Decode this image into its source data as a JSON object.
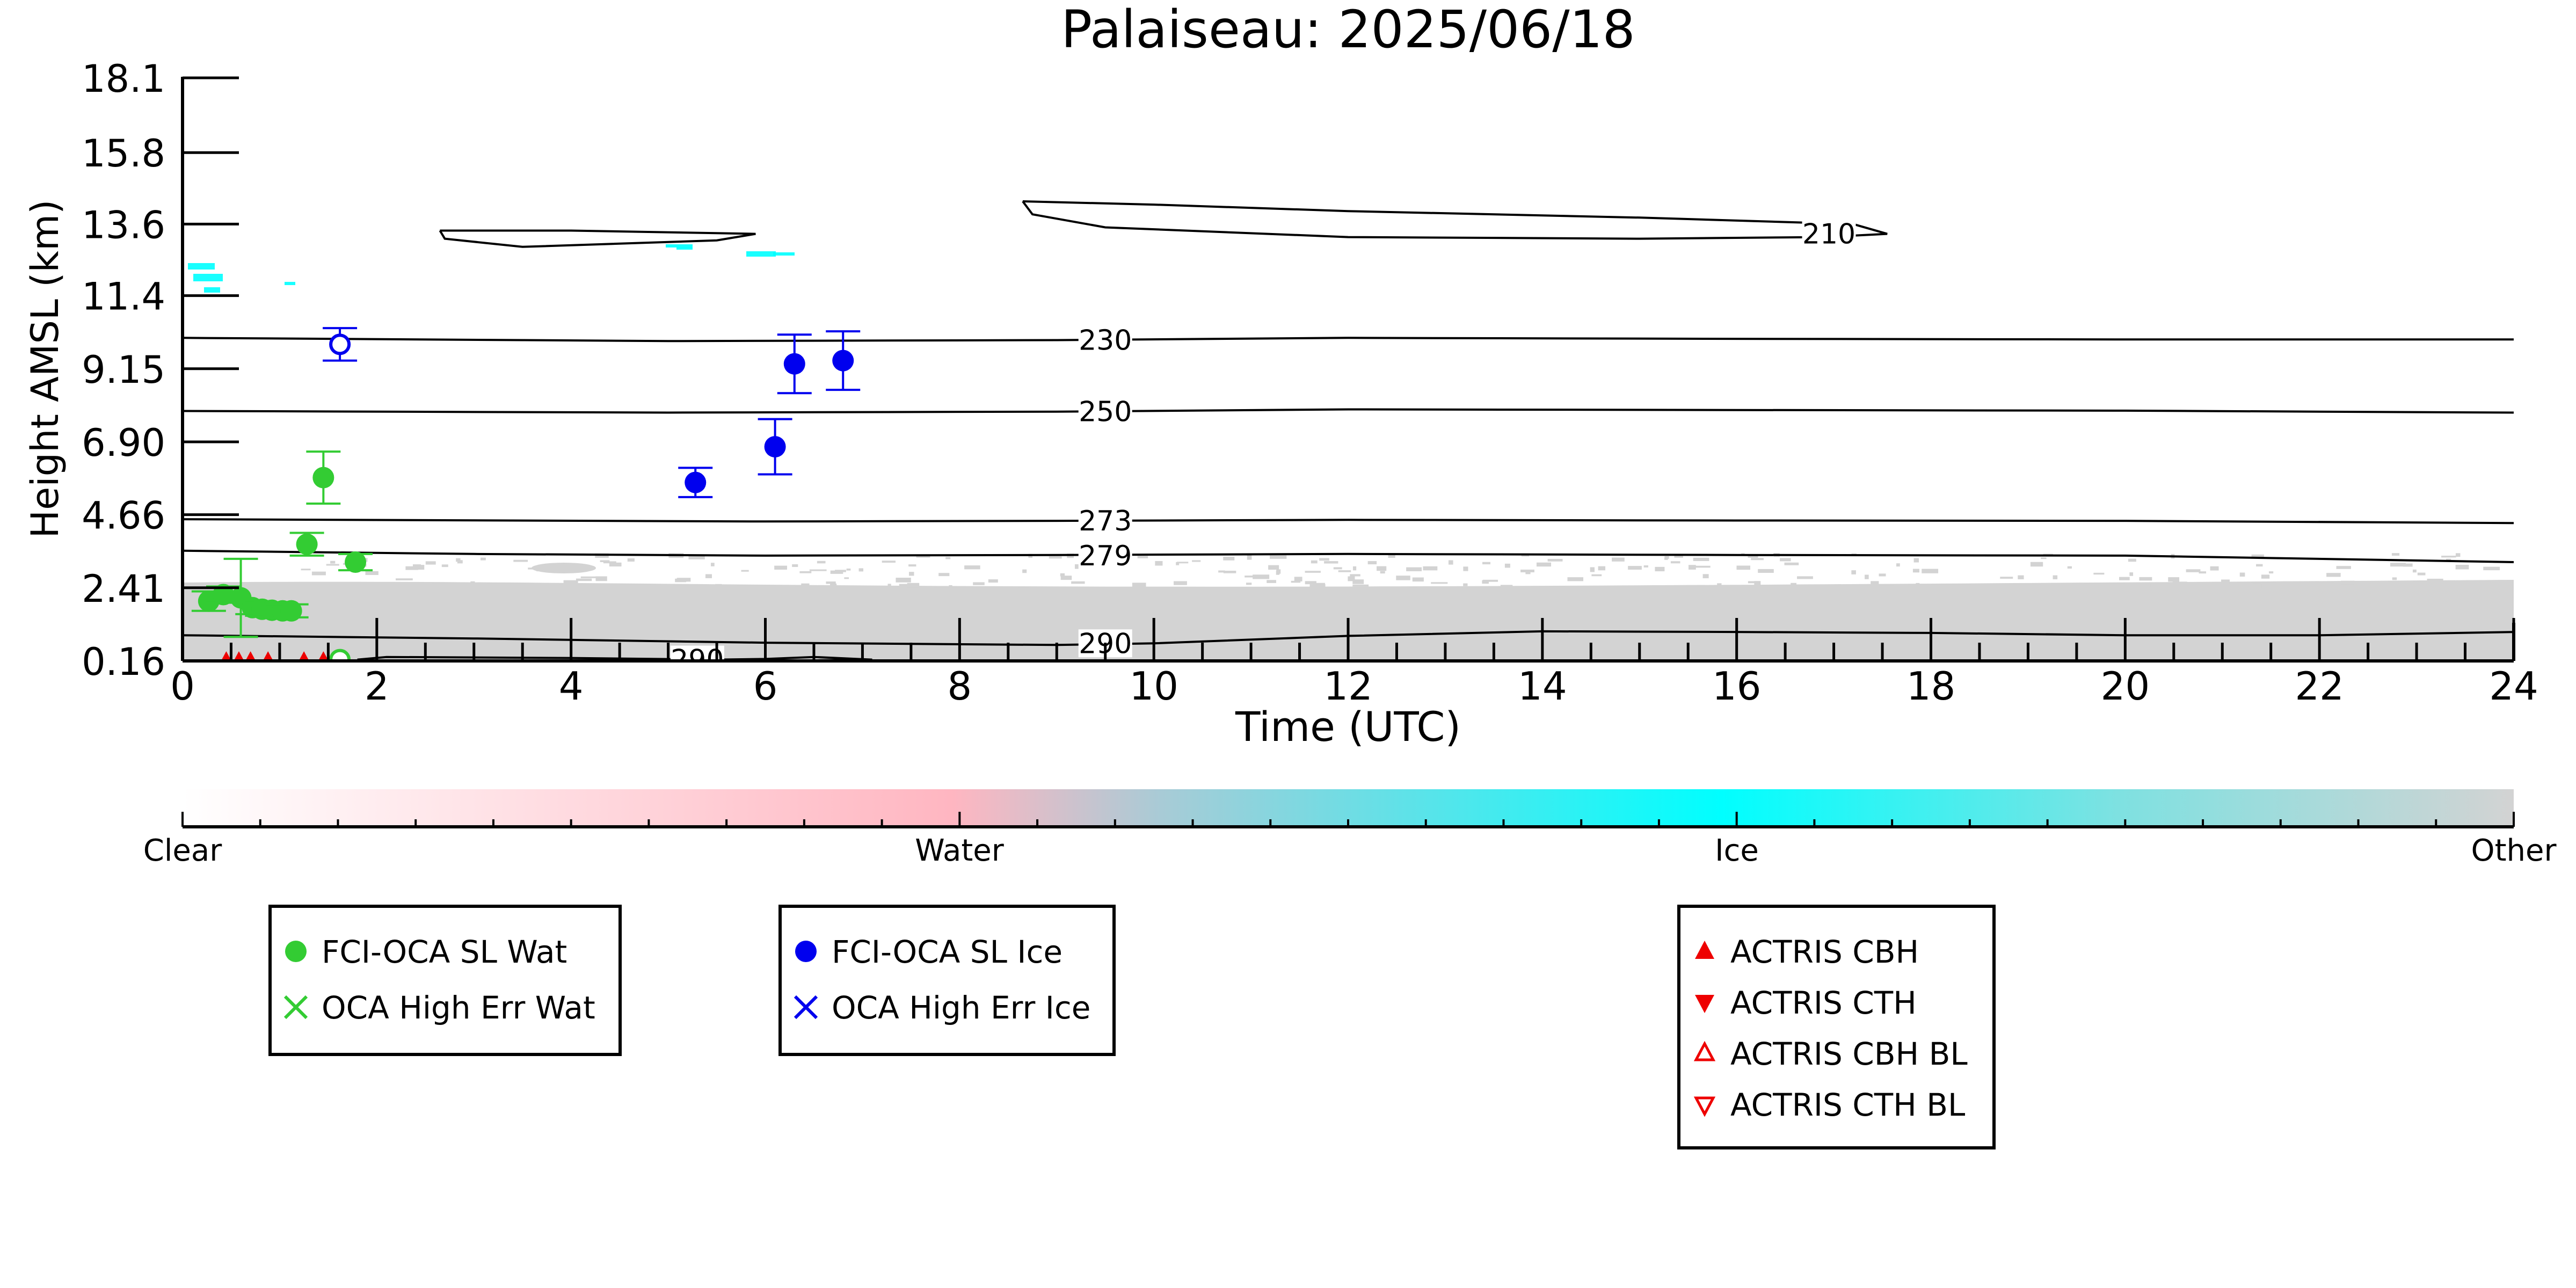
{
  "chart_data": {
    "type": "scatter",
    "title": "Palaiseau: 2025/06/18",
    "xlabel": "Time (UTC)",
    "ylabel": "Height AMSL (km)",
    "xlim": [
      0,
      24
    ],
    "ylim": [
      0.16,
      18.1
    ],
    "x_ticks": [
      "0",
      "2",
      "4",
      "6",
      "8",
      "10",
      "12",
      "14",
      "16",
      "18",
      "20",
      "22",
      "24"
    ],
    "y_ticks": [
      "18.1",
      "15.8",
      "13.6",
      "11.4",
      "9.15",
      "6.90",
      "4.66",
      "2.41",
      "0.16"
    ],
    "grid": false,
    "background_classification": {
      "description_labels": [
        "Clear",
        "Water",
        "Ice",
        "Other"
      ],
      "other_region_color": "#d3d3d3",
      "ice_region_color": "#00ffff"
    },
    "temperature_contours": [
      {
        "label": "210",
        "points": [
          [
            8.65,
            14.3
          ],
          [
            8.75,
            13.9
          ],
          [
            9.5,
            13.5
          ],
          [
            12,
            13.2
          ],
          [
            15,
            13.15
          ],
          [
            16.9,
            13.2
          ],
          [
            17.55,
            13.3
          ],
          [
            17.2,
            13.6
          ],
          [
            15,
            13.8
          ],
          [
            12,
            14.0
          ],
          [
            10,
            14.2
          ],
          [
            8.65,
            14.3
          ]
        ]
      },
      {
        "label": "",
        "points": [
          [
            2.65,
            13.4
          ],
          [
            2.7,
            13.15
          ],
          [
            3.5,
            12.9
          ],
          [
            5.5,
            13.1
          ],
          [
            5.9,
            13.3
          ],
          [
            4,
            13.4
          ],
          [
            2.65,
            13.4
          ]
        ]
      },
      {
        "label": "230",
        "points": [
          [
            0,
            10.1
          ],
          [
            5,
            10.0
          ],
          [
            9,
            10.03
          ],
          [
            12,
            10.1
          ],
          [
            16,
            10.07
          ],
          [
            20,
            10.05
          ],
          [
            24,
            10.05
          ]
        ]
      },
      {
        "label": "250",
        "points": [
          [
            0,
            7.85
          ],
          [
            5,
            7.8
          ],
          [
            9,
            7.83
          ],
          [
            12,
            7.9
          ],
          [
            16,
            7.88
          ],
          [
            20,
            7.86
          ],
          [
            24,
            7.8
          ]
        ]
      },
      {
        "label": "273",
        "points": [
          [
            0,
            4.52
          ],
          [
            6,
            4.45
          ],
          [
            9,
            4.47
          ],
          [
            12,
            4.5
          ],
          [
            16,
            4.48
          ],
          [
            20,
            4.47
          ],
          [
            24,
            4.4
          ]
        ]
      },
      {
        "label": "279",
        "points": [
          [
            0,
            3.55
          ],
          [
            3,
            3.45
          ],
          [
            6,
            3.4
          ],
          [
            9,
            3.42
          ],
          [
            12,
            3.45
          ],
          [
            16,
            3.42
          ],
          [
            20,
            3.4
          ],
          [
            24,
            3.2
          ]
        ]
      },
      {
        "label": "290",
        "points": [
          [
            0,
            0.95
          ],
          [
            3,
            0.85
          ],
          [
            6,
            0.72
          ],
          [
            9,
            0.65
          ],
          [
            10,
            0.7
          ],
          [
            12,
            0.93
          ],
          [
            14,
            1.07
          ],
          [
            16,
            1.05
          ],
          [
            18,
            1.02
          ],
          [
            20,
            0.95
          ],
          [
            22,
            0.95
          ],
          [
            24,
            1.05
          ]
        ]
      },
      {
        "label": "290",
        "points": [
          [
            1.8,
            0.2
          ],
          [
            2.1,
            0.28
          ],
          [
            4,
            0.25
          ],
          [
            5.5,
            0.2
          ],
          [
            6,
            0.22
          ],
          [
            6.5,
            0.28
          ],
          [
            7.1,
            0.2
          ],
          [
            5,
            0.12
          ],
          [
            2,
            0.14
          ],
          [
            1.8,
            0.2
          ]
        ]
      }
    ],
    "series": [
      {
        "name": "FCI-OCA SL Wat",
        "color": "#33cc33",
        "marker": "circle-filled",
        "points": [
          {
            "x": 0.27,
            "y": 2.0,
            "err": 0.3
          },
          {
            "x": 0.42,
            "y": 2.2,
            "err": 0.25
          },
          {
            "x": 0.6,
            "y": 2.1,
            "err": 1.2
          },
          {
            "x": 0.72,
            "y": 1.8,
            "err": 0.2
          },
          {
            "x": 0.82,
            "y": 1.75,
            "err": 0.2
          },
          {
            "x": 0.92,
            "y": 1.72,
            "err": 0.2
          },
          {
            "x": 1.03,
            "y": 1.7,
            "err": 0.2
          },
          {
            "x": 1.12,
            "y": 1.7,
            "err": 0.2
          },
          {
            "x": 1.28,
            "y": 3.75,
            "err": 0.35
          },
          {
            "x": 1.45,
            "y": 5.8,
            "err": 0.8
          },
          {
            "x": 1.78,
            "y": 3.2,
            "err": 0.25
          }
        ]
      },
      {
        "name": "FCI-OCA SL Wat (open)",
        "color": "#33cc33",
        "marker": "circle-open",
        "points": [
          {
            "x": 1.62,
            "y": 0.2,
            "err": 0
          }
        ]
      },
      {
        "name": "FCI-OCA SL Ice",
        "color": "#0000ee",
        "marker": "circle-filled",
        "points": [
          {
            "x": 5.28,
            "y": 5.65,
            "err": 0.45
          },
          {
            "x": 6.1,
            "y": 6.75,
            "err": 0.85
          },
          {
            "x": 6.3,
            "y": 9.3,
            "err": 0.9
          },
          {
            "x": 6.8,
            "y": 9.4,
            "err": 0.9
          }
        ]
      },
      {
        "name": "FCI-OCA SL Ice (open)",
        "color": "#0000ee",
        "marker": "circle-open",
        "points": [
          {
            "x": 1.62,
            "y": 9.9,
            "err": 0.5
          }
        ]
      },
      {
        "name": "ACTRIS CBH",
        "color": "#ee0000",
        "marker": "triangle-up-filled",
        "points": [
          {
            "x": 0.45,
            "y": 0.16
          },
          {
            "x": 0.58,
            "y": 0.16
          },
          {
            "x": 0.7,
            "y": 0.16
          },
          {
            "x": 0.88,
            "y": 0.16
          },
          {
            "x": 1.25,
            "y": 0.16
          },
          {
            "x": 1.45,
            "y": 0.16
          }
        ]
      }
    ],
    "legends": [
      {
        "position": "lower-left",
        "entries": [
          {
            "label": "FCI-OCA SL Wat",
            "marker": "circle-filled",
            "color": "#33cc33"
          },
          {
            "label": "OCA High Err Wat",
            "marker": "x",
            "color": "#33cc33"
          }
        ]
      },
      {
        "position": "lower-center-left",
        "entries": [
          {
            "label": "FCI-OCA SL Ice",
            "marker": "circle-filled",
            "color": "#0000ee"
          },
          {
            "label": "OCA High Err Ice",
            "marker": "x",
            "color": "#0000ee"
          }
        ]
      },
      {
        "position": "lower-right",
        "entries": [
          {
            "label": "ACTRIS CBH",
            "marker": "triangle-up-filled",
            "color": "#ee0000"
          },
          {
            "label": "ACTRIS CTH",
            "marker": "triangle-down-filled",
            "color": "#ee0000"
          },
          {
            "label": "ACTRIS CBH BL",
            "marker": "triangle-up-open",
            "color": "#ee0000"
          },
          {
            "label": "ACTRIS CTH BL",
            "marker": "triangle-down-open",
            "color": "#ee0000"
          }
        ]
      }
    ]
  }
}
